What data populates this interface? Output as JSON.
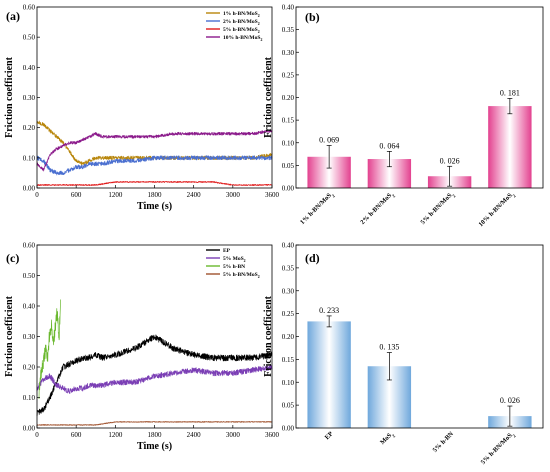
{
  "chart_data": [
    {
      "panel": "(a)",
      "type": "line",
      "xlabel": "Time (s)",
      "ylabel": "Friction coefficient",
      "xlim": [
        0,
        3600
      ],
      "ylim": [
        0,
        0.6
      ],
      "xticks": [
        "0",
        "600",
        "1200",
        "1800",
        "2400",
        "3000",
        "3600"
      ],
      "yticks": [
        "0.00",
        "0.10",
        "0.20",
        "0.30",
        "0.40",
        "0.50",
        "0.60"
      ],
      "legend_position": "top-right",
      "series": [
        {
          "name": "1% h-BN/MoS2",
          "color": "#b8860b",
          "x": [
            0,
            100,
            200,
            300,
            400,
            500,
            600,
            700,
            800,
            900,
            1000,
            1200,
            1500,
            1800,
            2100,
            2400,
            2700,
            3000,
            3300,
            3600
          ],
          "y": [
            0.22,
            0.21,
            0.19,
            0.17,
            0.15,
            0.12,
            0.09,
            0.08,
            0.09,
            0.1,
            0.1,
            0.1,
            0.1,
            0.1,
            0.1,
            0.1,
            0.1,
            0.1,
            0.1,
            0.11
          ]
        },
        {
          "name": "2% h-BN/MoS2",
          "color": "#4a6fd0",
          "x": [
            0,
            100,
            200,
            300,
            400,
            500,
            600,
            700,
            800,
            900,
            1000,
            1200,
            1500,
            1800,
            2100,
            2400,
            2700,
            3000,
            3300,
            3600
          ],
          "y": [
            0.1,
            0.09,
            0.06,
            0.05,
            0.05,
            0.06,
            0.07,
            0.07,
            0.08,
            0.08,
            0.08,
            0.09,
            0.09,
            0.1,
            0.1,
            0.1,
            0.1,
            0.1,
            0.1,
            0.1
          ]
        },
        {
          "name": "5% h-BN/MoS2",
          "color": "#e01b1b",
          "x": [
            0,
            300,
            600,
            900,
            1200,
            1500,
            1800,
            2100,
            2400,
            2700,
            3000,
            3300,
            3600
          ],
          "y": [
            0.01,
            0.01,
            0.01,
            0.01,
            0.02,
            0.02,
            0.02,
            0.02,
            0.02,
            0.02,
            0.01,
            0.01,
            0.01
          ]
        },
        {
          "name": "10% h-BN/MoS2",
          "color": "#8b1a8b",
          "x": [
            0,
            100,
            200,
            300,
            400,
            500,
            600,
            700,
            800,
            900,
            1000,
            1200,
            1500,
            1800,
            2100,
            2400,
            2700,
            3000,
            3300,
            3600
          ],
          "y": [
            0.08,
            0.06,
            0.11,
            0.13,
            0.14,
            0.15,
            0.15,
            0.16,
            0.17,
            0.18,
            0.17,
            0.17,
            0.17,
            0.17,
            0.18,
            0.18,
            0.18,
            0.18,
            0.18,
            0.19
          ]
        }
      ]
    },
    {
      "panel": "(b)",
      "type": "bar",
      "ylabel": "Friction coefficient",
      "ylim": [
        0,
        0.4
      ],
      "yticks": [
        "0.00",
        "0.05",
        "0.10",
        "0.15",
        "0.20",
        "0.25",
        "0.30",
        "0.35",
        "0.40"
      ],
      "categories": [
        "1% h-BN/MoS2",
        "2% h-BN/MoS2",
        "5% h-BN/MoS2",
        "10% h-BN/MoS2"
      ],
      "values": [
        0.069,
        0.064,
        0.026,
        0.181
      ],
      "errors": [
        0.025,
        0.017,
        0.022,
        0.017
      ],
      "value_labels": [
        "0. 069",
        "0. 064",
        "0. 026",
        "0. 181"
      ],
      "bar_color": "#e3418f"
    },
    {
      "panel": "(c)",
      "type": "line",
      "xlabel": "Time (s)",
      "ylabel": "Friction coefficient",
      "xlim": [
        0,
        3600
      ],
      "ylim": [
        0,
        0.6
      ],
      "xticks": [
        "0",
        "600",
        "1200",
        "1800",
        "2400",
        "3000",
        "3600"
      ],
      "yticks": [
        "0.00",
        "0.10",
        "0.20",
        "0.30",
        "0.40",
        "0.50",
        "0.60"
      ],
      "legend_position": "top-right",
      "series": [
        {
          "name": "EP",
          "color": "#000000",
          "x": [
            0,
            100,
            200,
            300,
            400,
            500,
            600,
            700,
            800,
            900,
            1000,
            1200,
            1500,
            1800,
            2100,
            2400,
            2700,
            3000,
            3300,
            3600
          ],
          "y": [
            0.05,
            0.06,
            0.1,
            0.15,
            0.2,
            0.21,
            0.22,
            0.23,
            0.23,
            0.24,
            0.23,
            0.24,
            0.26,
            0.3,
            0.26,
            0.24,
            0.23,
            0.23,
            0.23,
            0.24
          ]
        },
        {
          "name": "5% MoS2",
          "color": "#7b3fb5",
          "x": [
            0,
            100,
            200,
            300,
            400,
            500,
            600,
            700,
            800,
            900,
            1000,
            1200,
            1500,
            1800,
            2100,
            2400,
            2700,
            3000,
            3300,
            3600
          ],
          "y": [
            0.13,
            0.16,
            0.17,
            0.14,
            0.13,
            0.12,
            0.13,
            0.13,
            0.14,
            0.14,
            0.14,
            0.15,
            0.15,
            0.17,
            0.18,
            0.19,
            0.18,
            0.18,
            0.19,
            0.2
          ]
        },
        {
          "name": "5% h-BN",
          "color": "#6ab82e",
          "x": [
            30,
            60,
            100,
            130,
            160,
            190,
            220,
            250,
            280,
            310,
            340,
            360
          ],
          "y": [
            0.12,
            0.18,
            0.22,
            0.26,
            0.23,
            0.3,
            0.35,
            0.28,
            0.33,
            0.38,
            0.3,
            0.4
          ]
        },
        {
          "name": "5% h-BN/MoS2",
          "color": "#a0522d",
          "x": [
            0,
            300,
            600,
            900,
            1200,
            1500,
            1800,
            2100,
            2400,
            2700,
            3000,
            3300,
            3600
          ],
          "y": [
            0.01,
            0.01,
            0.01,
            0.01,
            0.02,
            0.02,
            0.02,
            0.02,
            0.02,
            0.02,
            0.02,
            0.02,
            0.02
          ]
        }
      ]
    },
    {
      "panel": "(d)",
      "type": "bar",
      "ylabel": "Friction coefficient",
      "ylim": [
        0,
        0.4
      ],
      "yticks": [
        "0.00",
        "0.05",
        "0.10",
        "0.15",
        "0.20",
        "0.25",
        "0.30",
        "0.35",
        "0.40"
      ],
      "categories": [
        "EP",
        "MoS2",
        "5% h-BN",
        "5% h-BN/MoS2"
      ],
      "values": [
        0.233,
        0.135,
        0,
        0.026
      ],
      "errors": [
        0.012,
        0.03,
        0,
        0.022
      ],
      "value_labels": [
        "0. 233",
        "0. 135",
        "",
        "0. 026"
      ],
      "bar_color": "#5b9bd5"
    }
  ]
}
